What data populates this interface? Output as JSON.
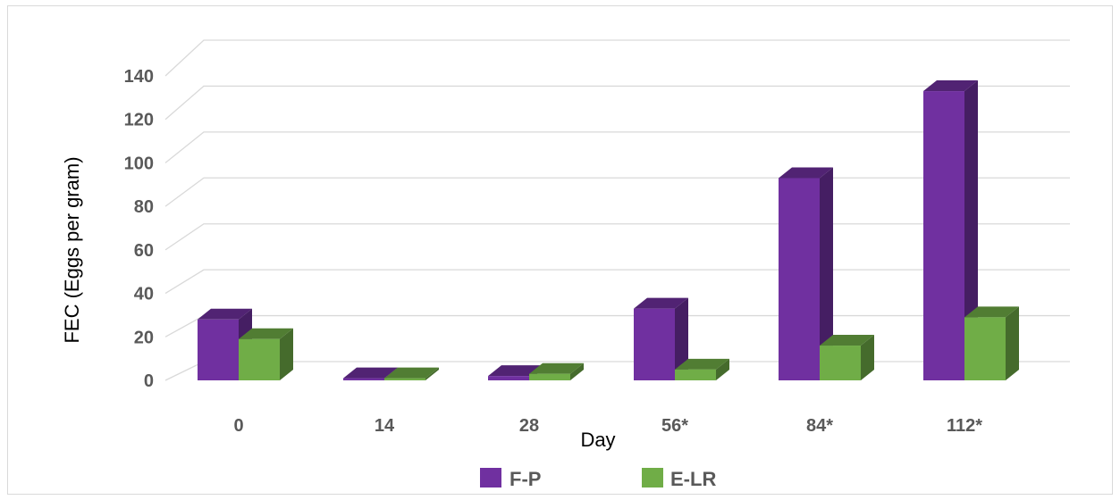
{
  "chart_data": {
    "type": "bar",
    "title": "",
    "xlabel": "Day",
    "ylabel": "FEC (Eggs per gram)",
    "categories": [
      "0",
      "14",
      "28",
      "56*",
      "84*",
      "112*"
    ],
    "series": [
      {
        "name": "F-P",
        "values": [
          28,
          1,
          2,
          33,
          93,
          133
        ],
        "color": "#7030a0"
      },
      {
        "name": "E-LR",
        "values": [
          19,
          1,
          3,
          5,
          16,
          29
        ],
        "color": "#70ad47"
      }
    ],
    "ylim": [
      0,
      140
    ],
    "yticks": [
      "0",
      "20",
      "40",
      "60",
      "80",
      "100",
      "120",
      "140"
    ],
    "grid": true,
    "three_d": true,
    "legend_position": "bottom"
  }
}
